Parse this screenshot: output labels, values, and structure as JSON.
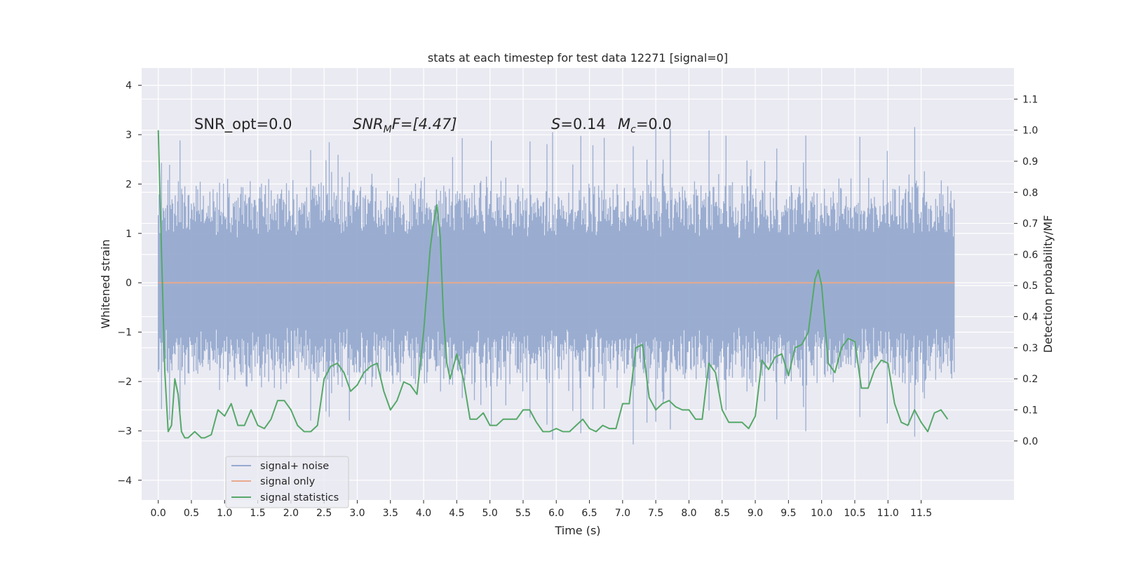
{
  "chart_data": {
    "type": "line",
    "title": "stats at each timestep for test data 12271 [signal=0]",
    "xlabel": "Time (s)",
    "ylabel": "Whitened strain",
    "y2label": "Detection probability/MF",
    "xlim": [
      -0.25,
      12.9
    ],
    "ylim": [
      -4.4,
      4.35
    ],
    "y2lim": [
      -0.19,
      1.2
    ],
    "x_ticks": [
      "0.0",
      "0.5",
      "1.0",
      "1.5",
      "2.0",
      "2.5",
      "3.0",
      "3.5",
      "4.0",
      "4.5",
      "5.0",
      "5.5",
      "6.0",
      "6.5",
      "7.0",
      "7.5",
      "8.0",
      "8.5",
      "9.0",
      "9.5",
      "10.0",
      "10.5",
      "11.0",
      "11.5"
    ],
    "y_ticks": [
      "4",
      "3",
      "2",
      "1",
      "0",
      "−1",
      "−2",
      "−3",
      "−4"
    ],
    "y2_ticks": [
      "1.1",
      "1.0",
      "0.9",
      "0.8",
      "0.7",
      "0.6",
      "0.5",
      "0.4",
      "0.3",
      "0.2",
      "0.1",
      "0.0"
    ],
    "grid": true,
    "legend_position": "lower-left",
    "annotations": {
      "snr_opt": "SNR_opt=0.0",
      "snr_mf_base": "SNR",
      "snr_mf_sub": "M",
      "snr_mf_rest": "F=[4.47]",
      "s_var": "S",
      "s_value": "=0.14",
      "mc_var": "M",
      "mc_sub": "c",
      "mc_value": "=0.0"
    },
    "series": [
      {
        "name": "signal+ noise",
        "color": "#96aacf",
        "envelope": {
          "t_start": 0.0,
          "t_end": 12.0,
          "typical_amplitude": 1.9,
          "min": -4.05,
          "max": 3.95
        }
      },
      {
        "name": "signal only",
        "color": "#e8a88d",
        "constant_value": 0.0
      },
      {
        "name": "signal statistics",
        "color": "#55a868",
        "x": [
          0.0,
          0.05,
          0.1,
          0.15,
          0.2,
          0.25,
          0.3,
          0.35,
          0.4,
          0.45,
          0.5,
          0.55,
          0.6,
          0.65,
          0.7,
          0.8,
          0.9,
          1.0,
          1.1,
          1.2,
          1.3,
          1.4,
          1.5,
          1.6,
          1.7,
          1.8,
          1.9,
          2.0,
          2.1,
          2.2,
          2.3,
          2.4,
          2.5,
          2.6,
          2.7,
          2.8,
          2.9,
          3.0,
          3.1,
          3.2,
          3.3,
          3.4,
          3.5,
          3.6,
          3.7,
          3.8,
          3.9,
          4.0,
          4.1,
          4.15,
          4.2,
          4.25,
          4.3,
          4.35,
          4.4,
          4.5,
          4.6,
          4.7,
          4.8,
          4.9,
          5.0,
          5.1,
          5.2,
          5.3,
          5.4,
          5.5,
          5.6,
          5.7,
          5.8,
          5.9,
          6.0,
          6.1,
          6.2,
          6.3,
          6.4,
          6.5,
          6.6,
          6.7,
          6.8,
          6.9,
          7.0,
          7.1,
          7.2,
          7.3,
          7.4,
          7.5,
          7.6,
          7.7,
          7.8,
          7.9,
          8.0,
          8.1,
          8.2,
          8.3,
          8.4,
          8.5,
          8.6,
          8.7,
          8.8,
          8.9,
          9.0,
          9.1,
          9.2,
          9.3,
          9.4,
          9.5,
          9.6,
          9.7,
          9.8,
          9.9,
          9.95,
          10.0,
          10.1,
          10.2,
          10.3,
          10.4,
          10.5,
          10.6,
          10.7,
          10.8,
          10.9,
          11.0,
          11.1,
          11.2,
          11.3,
          11.4,
          11.5,
          11.6,
          11.7,
          11.8,
          11.9
        ],
        "values": [
          1.0,
          0.6,
          0.22,
          0.03,
          0.05,
          0.2,
          0.15,
          0.03,
          0.01,
          0.01,
          0.02,
          0.03,
          0.02,
          0.01,
          0.01,
          0.02,
          0.1,
          0.08,
          0.12,
          0.05,
          0.05,
          0.1,
          0.05,
          0.04,
          0.07,
          0.13,
          0.13,
          0.1,
          0.05,
          0.03,
          0.03,
          0.05,
          0.2,
          0.24,
          0.25,
          0.22,
          0.16,
          0.18,
          0.22,
          0.24,
          0.25,
          0.16,
          0.1,
          0.13,
          0.19,
          0.18,
          0.15,
          0.35,
          0.62,
          0.7,
          0.76,
          0.66,
          0.4,
          0.25,
          0.2,
          0.28,
          0.2,
          0.07,
          0.07,
          0.09,
          0.05,
          0.05,
          0.07,
          0.07,
          0.07,
          0.1,
          0.1,
          0.06,
          0.03,
          0.03,
          0.04,
          0.03,
          0.03,
          0.05,
          0.07,
          0.04,
          0.03,
          0.05,
          0.04,
          0.04,
          0.12,
          0.12,
          0.3,
          0.31,
          0.14,
          0.1,
          0.12,
          0.13,
          0.11,
          0.1,
          0.1,
          0.07,
          0.07,
          0.25,
          0.22,
          0.1,
          0.06,
          0.06,
          0.06,
          0.04,
          0.08,
          0.26,
          0.23,
          0.27,
          0.28,
          0.21,
          0.3,
          0.31,
          0.35,
          0.52,
          0.55,
          0.5,
          0.25,
          0.22,
          0.3,
          0.33,
          0.32,
          0.17,
          0.17,
          0.23,
          0.26,
          0.25,
          0.12,
          0.06,
          0.05,
          0.1,
          0.06,
          0.03,
          0.09,
          0.1,
          0.07
        ]
      }
    ]
  }
}
